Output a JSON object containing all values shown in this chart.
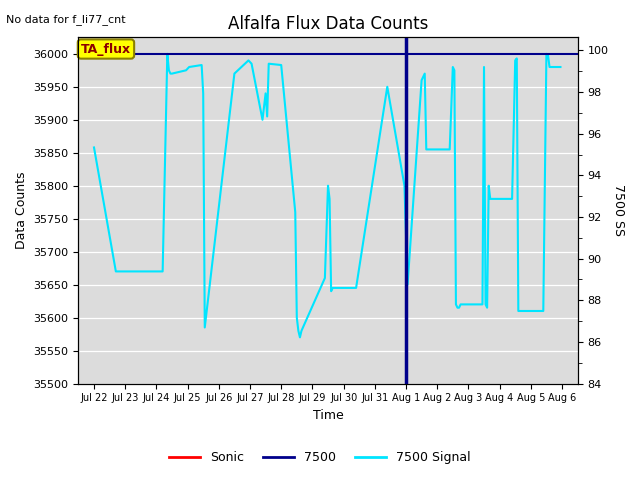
{
  "title": "Alfalfa Flux Data Counts",
  "top_left_text": "No data for f_li77_cnt",
  "xlabel": "Time",
  "ylabel_left": "Data Counts",
  "ylabel_right": "7500 SS",
  "annotation_box": "TA_flux",
  "ylim_left": [
    35500,
    36025
  ],
  "ylim_right": [
    84,
    100.63
  ],
  "yticks_left": [
    35500,
    35550,
    35600,
    35650,
    35700,
    35750,
    35800,
    35850,
    35900,
    35950,
    36000
  ],
  "yticks_right": [
    84,
    86,
    88,
    90,
    92,
    94,
    96,
    98,
    100
  ],
  "bg_color": "#dcdcdc",
  "fig_color": "#ffffff",
  "signal_color": "#00e5ff",
  "vline_color": "#00008b",
  "hline_color": "#00008b",
  "hline_y": 36000,
  "vline_x": 10.0,
  "xlim": [
    -0.5,
    15.5
  ],
  "x_tick_labels": [
    "Jul 22",
    "Jul 23",
    "Jul 24",
    "Jul 25",
    "Jul 26",
    "Jul 27",
    "Jul 28",
    "Jul 29",
    "Jul 30",
    "Jul 31",
    "Aug 1",
    "Aug 2",
    "Aug 3",
    "Aug 4",
    "Aug 5",
    "Aug 6"
  ],
  "x_tick_positions": [
    0,
    1,
    2,
    3,
    4,
    5,
    6,
    7,
    8,
    9,
    10,
    11,
    12,
    13,
    14,
    15
  ],
  "signal_x": [
    0.0,
    0.7,
    2.2,
    2.35,
    2.4,
    2.45,
    2.5,
    2.95,
    3.05,
    3.45,
    3.5,
    3.55,
    4.5,
    4.95,
    5.05,
    5.4,
    5.5,
    5.55,
    5.6,
    6.0,
    6.45,
    6.5,
    6.55,
    6.6,
    6.65,
    7.4,
    7.5,
    7.55,
    7.6,
    7.65,
    8.4,
    9.4,
    9.95,
    10.05,
    10.5,
    10.6,
    10.65,
    10.7,
    11.4,
    11.5,
    11.55,
    11.6,
    11.65,
    11.7,
    11.75,
    12.45,
    12.5,
    12.55,
    12.6,
    12.65,
    12.7,
    12.75,
    13.4,
    13.5,
    13.55,
    13.6,
    14.4,
    14.5,
    14.55,
    14.6,
    14.95
  ],
  "signal_y": [
    35858,
    35670,
    35670,
    36000,
    35975,
    35970,
    35970,
    35975,
    35980,
    35983,
    35940,
    35585,
    35970,
    35990,
    35985,
    35900,
    35940,
    35905,
    35985,
    35983,
    35760,
    35600,
    35580,
    35570,
    35580,
    35660,
    35800,
    35780,
    35640,
    35645,
    35645,
    35950,
    35800,
    35650,
    35960,
    35970,
    35855,
    35855,
    35855,
    35980,
    35975,
    35620,
    35615,
    35615,
    35620,
    35620,
    35980,
    35620,
    35615,
    35800,
    35780,
    35780,
    35780,
    35990,
    35993,
    35610,
    35610,
    36000,
    35998,
    35980,
    35980
  ]
}
